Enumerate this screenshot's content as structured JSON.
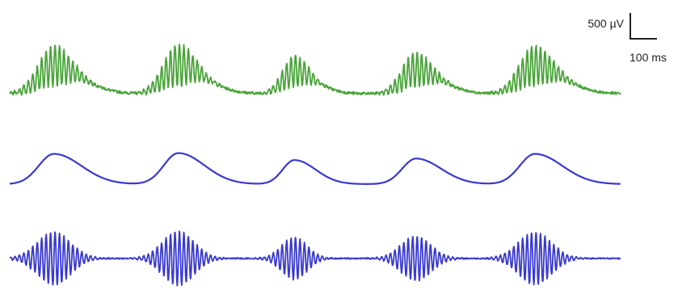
{
  "chart_data": {
    "type": "line",
    "title": "",
    "xlabel": "",
    "ylabel": "",
    "grid": false,
    "legend": "none",
    "scale_bar": {
      "amplitude_value": 500,
      "amplitude_label": "500 µV",
      "time_value": 100,
      "time_label": "100 ms"
    },
    "bursts": [
      {
        "t_ms": 160,
        "peak_uV": 780,
        "width_ms": 110,
        "freq_hz": 62
      },
      {
        "t_ms": 610,
        "peak_uV": 800,
        "width_ms": 105,
        "freq_hz": 62
      },
      {
        "t_ms": 1030,
        "peak_uV": 620,
        "width_ms": 85,
        "freq_hz": 62
      },
      {
        "t_ms": 1470,
        "peak_uV": 660,
        "width_ms": 100,
        "freq_hz": 62
      },
      {
        "t_ms": 1900,
        "peak_uV": 780,
        "width_ms": 110,
        "freq_hz": 62
      }
    ],
    "series": [
      {
        "component": "raw",
        "color": "#4aa43a",
        "slow_scale": 0.7,
        "fast_scale": 0.42,
        "noise_uV": 25
      },
      {
        "component": "slow",
        "color": "#3a3ad0",
        "slow_scale": 0.75,
        "fast_scale": 0,
        "noise_uV": 0
      },
      {
        "component": "fast",
        "color": "#3a3ad0",
        "slow_scale": 0,
        "fast_scale": 0.55,
        "noise_uV": 12
      }
    ],
    "xlim": [
      0,
      2210
    ]
  }
}
